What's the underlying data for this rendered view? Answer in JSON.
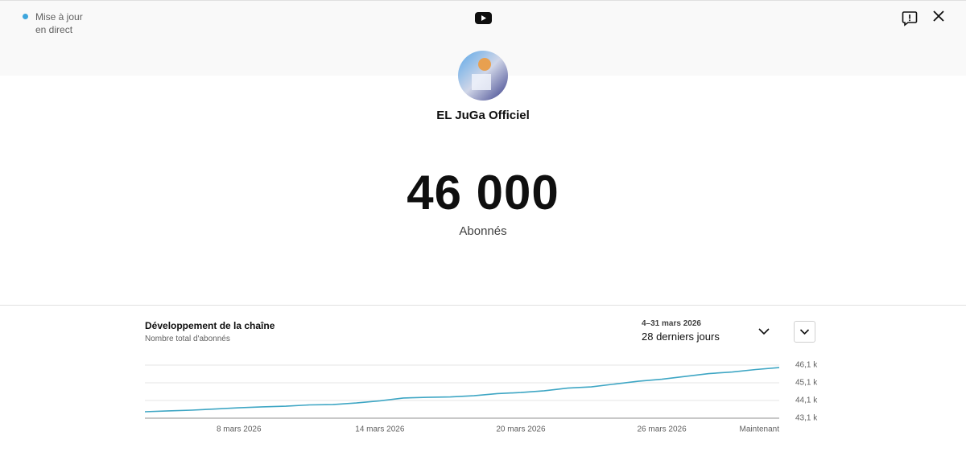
{
  "header": {
    "live_label": [
      "Mise à jour",
      "en direct"
    ]
  },
  "channel": {
    "name": "EL JuGa Officiel",
    "count": "46 000",
    "count_label": "Abonnés"
  },
  "panel": {
    "title": "Développement de la chaîne",
    "subtitle": "Nombre total d'abonnés",
    "date_range": "4–31 mars 2026",
    "period": "28 derniers jours"
  },
  "chart_data": {
    "type": "line",
    "categories": [
      null,
      null,
      null,
      null,
      "8 mars 2026",
      null,
      null,
      null,
      null,
      null,
      "14 mars 2026",
      null,
      null,
      null,
      null,
      null,
      "20 mars 2026",
      null,
      null,
      null,
      null,
      null,
      "26 mars 2026",
      null,
      null,
      null,
      null,
      "Maintenant"
    ],
    "series": [
      {
        "color": "#3ea6c4",
        "values": [
          43464,
          43510,
          43555,
          43620,
          43690,
          43740,
          43780,
          43850,
          43870,
          43960,
          44080,
          44240,
          44280,
          44300,
          44370,
          44490,
          44550,
          44650,
          44800,
          44870,
          45030,
          45190,
          45300,
          45460,
          45620,
          45710,
          45850,
          45960
        ]
      }
    ],
    "ylim": [
      43100,
      46100
    ],
    "yticks": [
      {
        "value": 43100,
        "label": "43,1 k"
      },
      {
        "value": 44100,
        "label": "44,1 k"
      },
      {
        "value": 45100,
        "label": "45,1 k"
      },
      {
        "value": 46100,
        "label": "46,1 k"
      }
    ],
    "grid": true
  }
}
